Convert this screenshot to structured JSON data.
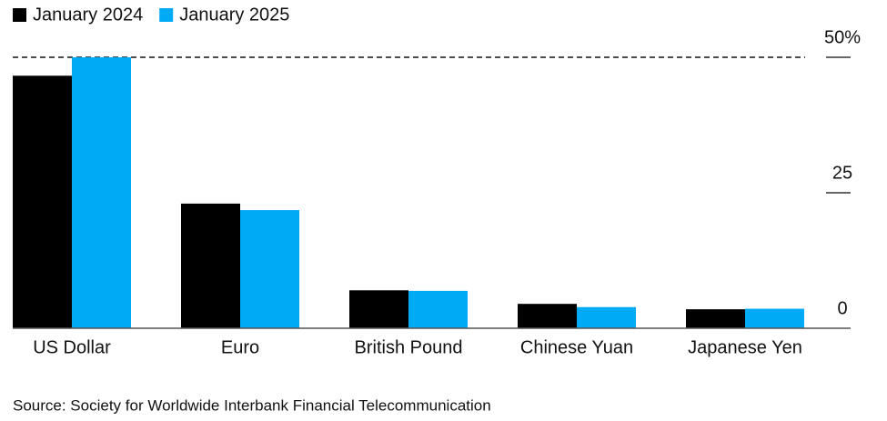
{
  "chart_data": {
    "type": "bar",
    "categories": [
      "US Dollar",
      "Euro",
      "British Pound",
      "Chinese Yuan",
      "Japanese Yen"
    ],
    "series": [
      {
        "name": "January 2024",
        "color": "#000000",
        "values": [
          46.6,
          23.0,
          7.0,
          4.5,
          3.5
        ]
      },
      {
        "name": "January 2025",
        "color": "#00aaf5",
        "values": [
          50.0,
          21.8,
          6.9,
          3.9,
          3.6
        ]
      }
    ],
    "ylim": [
      0,
      50
    ],
    "yticks": [
      0,
      25,
      {
        "value": 50,
        "label": "50%"
      }
    ],
    "legend": "top-left",
    "source": "Source: Society for Worldwide Interbank Financial Telecommunication"
  }
}
